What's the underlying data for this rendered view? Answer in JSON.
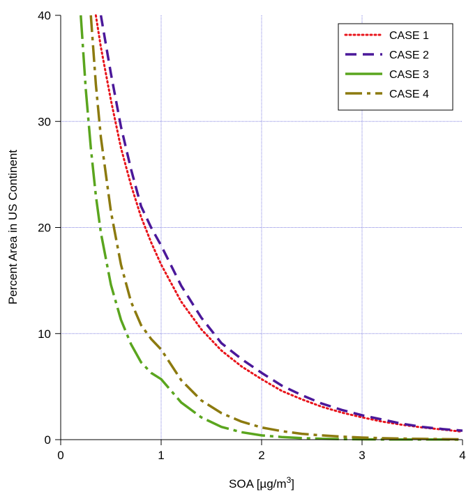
{
  "chart_data": {
    "type": "line",
    "title": "",
    "xlabel": "SOA [µg/m",
    "xlabel_sup": "3",
    "xlabel_end": "]",
    "ylabel": "Percent Area in US Continent",
    "xlim": [
      0,
      4
    ],
    "ylim": [
      0,
      40
    ],
    "xticks": [
      "0",
      "1",
      "2",
      "3",
      "4"
    ],
    "yticks": [
      "0",
      "10",
      "20",
      "30",
      "40"
    ],
    "grid": true,
    "legend_position": "top-right",
    "x": [
      0.2,
      0.25,
      0.3,
      0.35,
      0.4,
      0.5,
      0.6,
      0.7,
      0.8,
      0.9,
      1.0,
      1.2,
      1.4,
      1.6,
      1.8,
      2.0,
      2.2,
      2.4,
      2.6,
      2.8,
      3.0,
      3.2,
      3.4,
      3.6,
      3.8,
      4.0
    ],
    "series": [
      {
        "name": "CASE 1",
        "color": "#e8141b",
        "dash": "dotted",
        "values": [
          null,
          null,
          null,
          40.0,
          37.0,
          32.0,
          27.5,
          24.0,
          21.0,
          18.6,
          16.5,
          13.0,
          10.4,
          8.4,
          6.9,
          5.7,
          4.6,
          3.8,
          3.1,
          2.55,
          2.1,
          1.7,
          1.4,
          1.15,
          0.95,
          0.75
        ]
      },
      {
        "name": "CASE 2",
        "color": "#4b189a",
        "dash": "dashed",
        "values": [
          null,
          null,
          null,
          null,
          40.0,
          34.5,
          29.5,
          25.5,
          22.0,
          20.0,
          18.3,
          14.5,
          11.5,
          9.1,
          7.6,
          6.3,
          5.1,
          4.2,
          3.4,
          2.8,
          2.3,
          1.9,
          1.5,
          1.2,
          1.0,
          0.85
        ]
      },
      {
        "name": "CASE 3",
        "color": "#5aa51e",
        "dash": "solid-dashdot",
        "values": [
          40.0,
          33.0,
          27.5,
          23.0,
          19.5,
          14.6,
          11.3,
          9.0,
          7.3,
          6.3,
          5.7,
          3.5,
          2.1,
          1.2,
          0.7,
          0.4,
          0.25,
          0.15,
          0.08,
          0.05,
          0.03,
          0.02,
          0.01,
          0.01,
          0.01,
          0.0
        ]
      },
      {
        "name": "CASE 4",
        "color": "#8c7a0f",
        "dash": "dashdot",
        "values": [
          null,
          null,
          40.0,
          33.5,
          28.5,
          21.5,
          16.5,
          13.0,
          10.8,
          9.5,
          8.5,
          5.6,
          3.7,
          2.5,
          1.7,
          1.15,
          0.8,
          0.55,
          0.4,
          0.28,
          0.2,
          0.14,
          0.1,
          0.07,
          0.05,
          0.03
        ]
      }
    ]
  }
}
